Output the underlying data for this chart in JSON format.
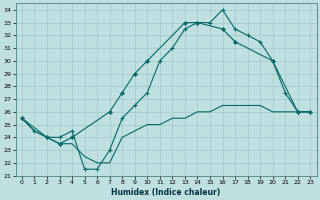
{
  "xlabel": "Humidex (Indice chaleur)",
  "background_color": "#c0e0e0",
  "grid_color": "#a0c8c8",
  "line_color": "#006868",
  "xlim": [
    -0.5,
    23.5
  ],
  "ylim": [
    21,
    34.5
  ],
  "yticks": [
    21,
    22,
    23,
    24,
    25,
    26,
    27,
    28,
    29,
    30,
    31,
    32,
    33,
    34
  ],
  "xticks": [
    0,
    1,
    2,
    3,
    4,
    5,
    6,
    7,
    8,
    9,
    10,
    11,
    12,
    13,
    14,
    15,
    16,
    17,
    18,
    19,
    20,
    21,
    22,
    23
  ],
  "line1_x": [
    0,
    1,
    2,
    3,
    4,
    5,
    6,
    7,
    8,
    9,
    10,
    11,
    12,
    13,
    14,
    15,
    16,
    17,
    18,
    19,
    20,
    21,
    22,
    23
  ],
  "line1_y": [
    25.5,
    24.5,
    24.0,
    24.0,
    24.5,
    21.5,
    21.5,
    23.0,
    25.5,
    26.5,
    27.5,
    30.0,
    31.0,
    32.5,
    33.0,
    33.0,
    34.0,
    32.5,
    32.0,
    31.5,
    30.0,
    27.5,
    26.0,
    26.0
  ],
  "line2_x": [
    0,
    2,
    3,
    4,
    7,
    8,
    9,
    10,
    13,
    14,
    16,
    17,
    20,
    22,
    23
  ],
  "line2_y": [
    25.5,
    24.0,
    23.5,
    24.0,
    26.0,
    27.5,
    29.0,
    30.0,
    33.0,
    33.0,
    32.5,
    31.5,
    30.0,
    26.0,
    26.0
  ],
  "line3_x": [
    0,
    1,
    2,
    3,
    4,
    5,
    6,
    7,
    8,
    9,
    10,
    11,
    12,
    13,
    14,
    15,
    16,
    17,
    18,
    19,
    20,
    21,
    22,
    23
  ],
  "line3_y": [
    25.5,
    24.5,
    24.0,
    23.5,
    23.5,
    22.5,
    22.0,
    22.0,
    24.0,
    24.5,
    25.0,
    25.0,
    25.5,
    25.5,
    26.0,
    26.0,
    26.5,
    26.5,
    26.5,
    26.5,
    26.0,
    26.0,
    26.0,
    26.0
  ]
}
